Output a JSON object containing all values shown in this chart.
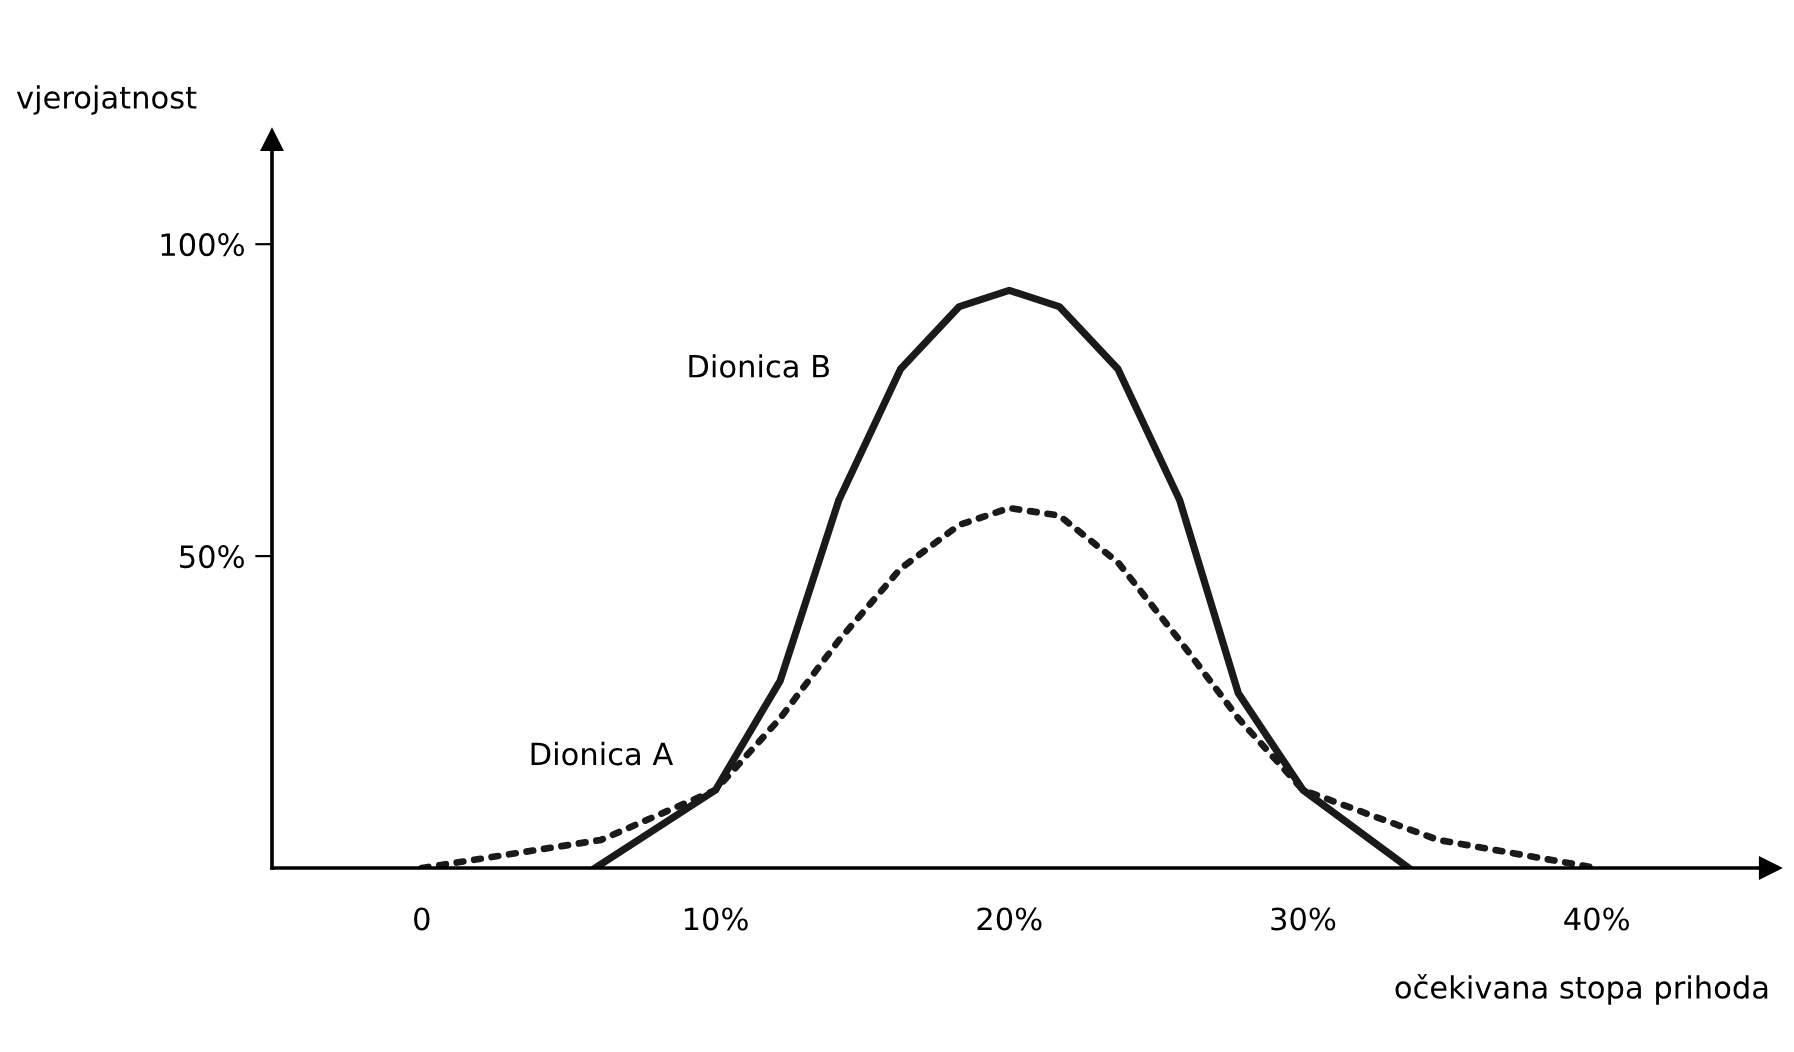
{
  "chart_data": {
    "type": "line",
    "xlabel": "očekivana stopa prihoda",
    "ylabel": "vjerojatnost",
    "xlim": [
      -5.1,
      45.9
    ],
    "ylim": [
      0,
      116.7
    ],
    "xticks": [
      {
        "value": 0,
        "label": "0"
      },
      {
        "value": 10,
        "label": "10%"
      },
      {
        "value": 20,
        "label": "20%"
      },
      {
        "value": 30,
        "label": "30%"
      },
      {
        "value": 40,
        "label": "40%"
      }
    ],
    "yticks": [
      {
        "value": 50,
        "label": "50%"
      },
      {
        "value": 100,
        "label": "100%"
      }
    ],
    "grid": false,
    "legend": false,
    "marker": "none",
    "series": [
      {
        "name": "Dionica B",
        "color": "#1a1a1a",
        "line_style": "solid",
        "x": [
          5.9,
          10,
          12.2,
          14.2,
          16.3,
          18.3,
          20,
          21.7,
          23.7,
          25.8,
          27.8,
          30,
          33.6
        ],
        "values": [
          0,
          12.5,
          30,
          59,
          80,
          90,
          92.6,
          90,
          80,
          59,
          28,
          12.5,
          0
        ]
      },
      {
        "name": "Dionica A",
        "color": "#1a1a1a",
        "line_style": "dotted",
        "x": [
          0,
          6.1,
          10,
          12.2,
          14.2,
          16.3,
          18.3,
          20,
          21.7,
          23.7,
          25.8,
          27.8,
          30,
          34.6,
          40
        ],
        "values": [
          0,
          4.5,
          12.5,
          24,
          36.5,
          48,
          55,
          57.7,
          56.5,
          49,
          36.5,
          24,
          12.5,
          4.5,
          0
        ]
      }
    ]
  }
}
